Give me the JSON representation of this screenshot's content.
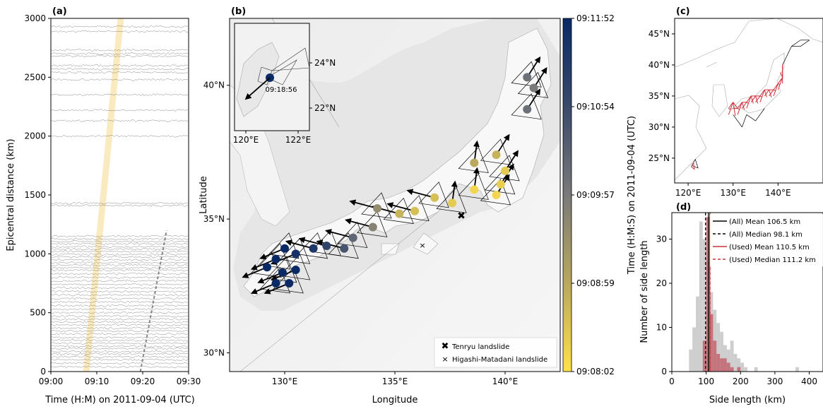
{
  "chart_data": [
    {
      "panel_label": "(a)",
      "type": "line",
      "xlabel": "Time (H:M) on 2011-09-04 (UTC)",
      "ylabel": "Epicentral distance (km)",
      "x_ticks": [
        "09:00",
        "09:10",
        "09:20",
        "09:30"
      ],
      "y_ticks": [
        0,
        500,
        1000,
        1500,
        2000,
        2500,
        3000
      ],
      "xlim_minutes": [
        0,
        30
      ],
      "ylim": [
        0,
        3000
      ],
      "trace_distances_km": [
        40,
        70,
        100,
        125,
        150,
        170,
        195,
        215,
        240,
        265,
        290,
        320,
        345,
        370,
        395,
        420,
        445,
        470,
        500,
        530,
        560,
        590,
        620,
        650,
        680,
        710,
        740,
        770,
        800,
        830,
        860,
        880,
        905,
        925,
        950,
        975,
        995,
        1020,
        1040,
        1060,
        1085,
        1105,
        1125,
        1150,
        1410,
        1430,
        2000,
        2130,
        2220,
        2350,
        2480,
        2540,
        2570,
        2600,
        2680,
        2700,
        2730,
        2890,
        2930
      ],
      "series": [
        {
          "slope_start": [
            7.7,
            0
          ],
          "slope_end": [
            15.2,
            3000
          ],
          "color": "#f5d98a"
        },
        {
          "slope_start": [
            19.5,
            0
          ],
          "slope_end": [
            25.2,
            1200
          ],
          "color": "#888888"
        }
      ]
    },
    {
      "panel_label": "(b)",
      "type": "scatter",
      "xlabel": "Longitude",
      "ylabel": "Latitude",
      "x_ticks": [
        "130°E",
        "135°E",
        "140°E"
      ],
      "y_ticks": [
        "30°N",
        "35°N",
        "40°N"
      ],
      "xlim": [
        127.5,
        142.5
      ],
      "ylim": [
        29.3,
        42.5
      ],
      "colorbar": {
        "label": "Time (H:M:S) on 2011-09-04 (UTC)",
        "ticks": [
          "09:11:52",
          "09:10:54",
          "09:09:57",
          "09:08:59",
          "09:08:02"
        ],
        "colors": [
          "#0a2a66",
          "#ffe14a"
        ]
      },
      "points": [
        {
          "lon": 141.0,
          "lat": 40.3,
          "t": 0.55
        },
        {
          "lon": 141.3,
          "lat": 39.9,
          "t": 0.5
        },
        {
          "lon": 141.0,
          "lat": 39.1,
          "t": 0.55
        },
        {
          "lon": 139.6,
          "lat": 37.4,
          "t": 0.2
        },
        {
          "lon": 138.6,
          "lat": 37.1,
          "t": 0.25
        },
        {
          "lon": 140.0,
          "lat": 36.8,
          "t": 0.1
        },
        {
          "lon": 139.8,
          "lat": 36.3,
          "t": 0.08
        },
        {
          "lon": 139.6,
          "lat": 35.9,
          "t": 0.05
        },
        {
          "lon": 138.6,
          "lat": 36.1,
          "t": 0.05
        },
        {
          "lon": 137.6,
          "lat": 35.6,
          "t": 0.1
        },
        {
          "lon": 136.8,
          "lat": 35.8,
          "t": 0.15
        },
        {
          "lon": 135.9,
          "lat": 35.3,
          "t": 0.15
        },
        {
          "lon": 135.2,
          "lat": 35.2,
          "t": 0.2
        },
        {
          "lon": 134.2,
          "lat": 35.4,
          "t": 0.4
        },
        {
          "lon": 134.0,
          "lat": 34.7,
          "t": 0.45
        },
        {
          "lon": 133.1,
          "lat": 34.3,
          "t": 0.6
        },
        {
          "lon": 132.7,
          "lat": 33.9,
          "t": 0.7
        },
        {
          "lon": 131.9,
          "lat": 34.0,
          "t": 0.8
        },
        {
          "lon": 131.3,
          "lat": 33.9,
          "t": 0.9
        },
        {
          "lon": 130.5,
          "lat": 33.7,
          "t": 0.95
        },
        {
          "lon": 130.0,
          "lat": 33.9,
          "t": 1.0
        },
        {
          "lon": 129.6,
          "lat": 33.5,
          "t": 1.0
        },
        {
          "lon": 129.2,
          "lat": 33.2,
          "t": 1.0
        },
        {
          "lon": 129.9,
          "lat": 33.0,
          "t": 1.0
        },
        {
          "lon": 130.5,
          "lat": 33.1,
          "t": 1.0
        },
        {
          "lon": 129.6,
          "lat": 32.6,
          "t": 1.0
        },
        {
          "lon": 130.2,
          "lat": 32.6,
          "t": 1.0
        }
      ],
      "inset": {
        "x_ticks": [
          "120°E",
          "122°E"
        ],
        "y_ticks": [
          "24°N",
          "22°N"
        ],
        "label": "09:18:56"
      },
      "annotations": [
        {
          "symbol": "✖",
          "text": "Tenryu landslide"
        },
        {
          "symbol": "×",
          "text": "Higashi-Matadani landslide"
        }
      ]
    },
    {
      "panel_label": "(c)",
      "type": "line",
      "x_ticks": [
        "120°E",
        "130°E",
        "140°E"
      ],
      "y_ticks": [
        "25°N",
        "30°N",
        "35°N",
        "40°N",
        "45°N"
      ],
      "xlim": [
        117,
        150
      ],
      "ylim": [
        21,
        47.5
      ]
    },
    {
      "panel_label": "(d)",
      "type": "bar",
      "xlabel": "Side length (km)",
      "ylabel": "Number of side length",
      "x_ticks": [
        0,
        100,
        200,
        300,
        400
      ],
      "y_ticks": [
        0,
        10,
        20,
        30
      ],
      "xlim": [
        0,
        440
      ],
      "ylim": [
        0,
        36
      ],
      "bin_width": 10,
      "series": [
        {
          "name": "All",
          "color": "#c9c9c9",
          "bin_starts": [
            50,
            60,
            70,
            80,
            90,
            100,
            110,
            120,
            130,
            140,
            150,
            160,
            170,
            180,
            190,
            200,
            210,
            240,
            360
          ],
          "values": [
            5,
            10,
            17,
            34,
            30,
            25,
            18,
            14,
            11,
            9,
            6,
            5,
            7,
            4,
            3,
            2,
            1,
            1,
            1
          ]
        },
        {
          "name": "Used",
          "color": "#c05560",
          "bin_starts": [
            90,
            100,
            110,
            120,
            130,
            140,
            150,
            160,
            170,
            190
          ],
          "values": [
            7,
            35,
            13,
            7,
            4,
            3,
            3,
            2,
            1,
            1
          ]
        }
      ],
      "legend": [
        {
          "text": "(All) Mean 106.5 km",
          "color": "#000000",
          "dash": "none"
        },
        {
          "text": "(All) Median 98.1 km",
          "color": "#000000",
          "dash": "4,3"
        },
        {
          "text": "(Used) Mean 110.5 km",
          "color": "#c8323c",
          "dash": "none"
        },
        {
          "text": "(Used) Median 111.2 km",
          "color": "#c8323c",
          "dash": "4,3"
        }
      ],
      "vlines": [
        106.5,
        98.1,
        110.5,
        111.2
      ]
    }
  ]
}
